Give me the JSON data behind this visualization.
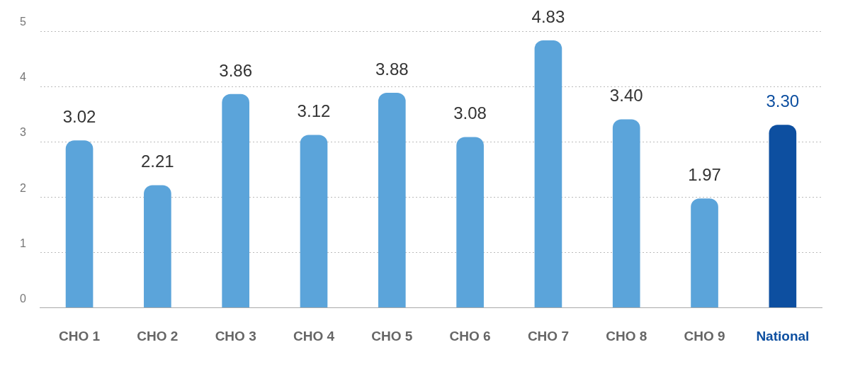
{
  "chart_data": {
    "type": "bar",
    "categories": [
      "CHO 1",
      "CHO 2",
      "CHO 3",
      "CHO 4",
      "CHO 5",
      "CHO 6",
      "CHO 7",
      "CHO 8",
      "CHO 9",
      "National"
    ],
    "values": [
      3.02,
      2.21,
      3.86,
      3.12,
      3.88,
      3.08,
      4.83,
      3.4,
      1.97,
      3.3
    ],
    "colors": [
      "#5ba4da",
      "#5ba4da",
      "#5ba4da",
      "#5ba4da",
      "#5ba4da",
      "#5ba4da",
      "#5ba4da",
      "#5ba4da",
      "#5ba4da",
      "#0d4fa0"
    ],
    "value_labels": [
      "3.02",
      "2.21",
      "3.86",
      "3.12",
      "3.88",
      "3.08",
      "4.83",
      "3.40",
      "1.97",
      "3.30"
    ],
    "ylim": [
      0,
      5
    ],
    "yticks": [
      0,
      1,
      2,
      3,
      4,
      5
    ],
    "grid": "y",
    "legend": false
  }
}
